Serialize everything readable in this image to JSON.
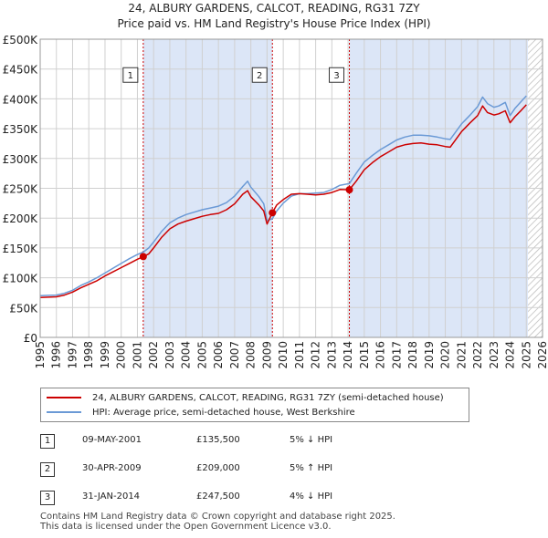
{
  "header": {
    "title": "24, ALBURY GARDENS, CALCOT, READING, RG31 7ZY",
    "subtitle": "Price paid vs. HM Land Registry's House Price Index (HPI)"
  },
  "colors": {
    "price_line": "#cc0000",
    "hpi_line": "#6b9ad6",
    "shade": "#dce6f7",
    "grid": "#d0d0d0"
  },
  "chart_data": {
    "type": "line",
    "xlim": [
      1995,
      2026
    ],
    "ylim": [
      0,
      500000
    ],
    "x_ticks": [
      "1995",
      "1996",
      "1997",
      "1998",
      "1999",
      "2000",
      "2001",
      "2002",
      "2003",
      "2004",
      "2005",
      "2006",
      "2007",
      "2008",
      "2009",
      "2010",
      "2011",
      "2012",
      "2013",
      "2014",
      "2015",
      "2016",
      "2017",
      "2018",
      "2019",
      "2020",
      "2021",
      "2022",
      "2023",
      "2024",
      "2025",
      "2026"
    ],
    "y_ticks": [
      {
        "value": 0,
        "label": "£0"
      },
      {
        "value": 50000,
        "label": "£50K"
      },
      {
        "value": 100000,
        "label": "£100K"
      },
      {
        "value": 150000,
        "label": "£150K"
      },
      {
        "value": 200000,
        "label": "£200K"
      },
      {
        "value": 250000,
        "label": "£250K"
      },
      {
        "value": 300000,
        "label": "£300K"
      },
      {
        "value": 350000,
        "label": "£350K"
      },
      {
        "value": 400000,
        "label": "£400K"
      },
      {
        "value": 450000,
        "label": "£450K"
      },
      {
        "value": 500000,
        "label": "£500K"
      }
    ],
    "shaded_ranges": [
      [
        2001.36,
        2009.33
      ],
      [
        2014.08,
        2025.1
      ]
    ],
    "hatch_from": 2025.1,
    "series": [
      {
        "name": "24, ALBURY GARDENS, CALCOT, READING, RG31 7ZY (semi-detached house)",
        "color": "#cc0000",
        "x": [
          1995.0,
          1995.5,
          1996.0,
          1996.5,
          1997.0,
          1997.5,
          1998.0,
          1998.5,
          1999.0,
          1999.5,
          2000.0,
          2000.5,
          2001.0,
          2001.36,
          2001.7,
          2002.0,
          2002.5,
          2003.0,
          2003.5,
          2004.0,
          2004.5,
          2005.0,
          2005.5,
          2006.0,
          2006.5,
          2007.0,
          2007.5,
          2007.8,
          2008.0,
          2008.5,
          2008.8,
          2009.0,
          2009.33,
          2009.6,
          2010.0,
          2010.5,
          2011.0,
          2011.5,
          2012.0,
          2012.5,
          2013.0,
          2013.5,
          2014.08,
          2014.5,
          2015.0,
          2015.5,
          2016.0,
          2016.5,
          2017.0,
          2017.5,
          2018.0,
          2018.5,
          2019.0,
          2019.5,
          2020.0,
          2020.3,
          2020.6,
          2021.0,
          2021.5,
          2022.0,
          2022.3,
          2022.6,
          2023.0,
          2023.3,
          2023.7,
          2024.0,
          2024.3,
          2024.7,
          2025.0
        ],
        "values": [
          67000,
          67500,
          68000,
          71000,
          76000,
          83000,
          89000,
          95000,
          103000,
          110000,
          117000,
          124000,
          131000,
          135500,
          140000,
          150000,
          168000,
          182000,
          190000,
          195000,
          199000,
          203000,
          206000,
          208000,
          214000,
          224000,
          240000,
          246000,
          236000,
          222000,
          212000,
          190000,
          209000,
          222000,
          231000,
          240000,
          241000,
          240000,
          239000,
          240000,
          243000,
          248000,
          247500,
          262000,
          281000,
          293000,
          303000,
          311000,
          319000,
          323000,
          325000,
          326000,
          324000,
          323000,
          320000,
          319000,
          330000,
          345000,
          359000,
          372000,
          388000,
          377000,
          373000,
          375000,
          380000,
          360000,
          370000,
          381000,
          390000
        ]
      },
      {
        "name": "HPI: Average price, semi-detached house, West Berkshire",
        "color": "#6b9ad6",
        "x": [
          1995.0,
          1995.5,
          1996.0,
          1996.5,
          1997.0,
          1997.5,
          1998.0,
          1998.5,
          1999.0,
          1999.5,
          2000.0,
          2000.5,
          2001.0,
          2001.36,
          2001.7,
          2002.0,
          2002.5,
          2003.0,
          2003.5,
          2004.0,
          2004.5,
          2005.0,
          2005.5,
          2006.0,
          2006.5,
          2007.0,
          2007.5,
          2007.8,
          2008.0,
          2008.5,
          2008.8,
          2009.0,
          2009.33,
          2009.6,
          2010.0,
          2010.5,
          2011.0,
          2011.5,
          2012.0,
          2012.5,
          2013.0,
          2013.5,
          2014.08,
          2014.5,
          2015.0,
          2015.5,
          2016.0,
          2016.5,
          2017.0,
          2017.5,
          2018.0,
          2018.5,
          2019.0,
          2019.5,
          2020.0,
          2020.3,
          2020.6,
          2021.0,
          2021.5,
          2022.0,
          2022.3,
          2022.6,
          2023.0,
          2023.3,
          2023.7,
          2024.0,
          2024.3,
          2024.7,
          2025.0
        ],
        "values": [
          70000,
          70500,
          71000,
          74000,
          79000,
          87000,
          93000,
          100000,
          108000,
          116000,
          124000,
          132000,
          139000,
          143000,
          150000,
          160000,
          178000,
          192000,
          200000,
          206000,
          210000,
          214000,
          217000,
          220000,
          226000,
          237000,
          253000,
          262000,
          252000,
          236000,
          224000,
          196000,
          199000,
          212000,
          225000,
          237000,
          241000,
          241000,
          242000,
          243000,
          248000,
          255000,
          258000,
          275000,
          294000,
          305000,
          315000,
          323000,
          331000,
          336000,
          339000,
          339000,
          338000,
          336000,
          333000,
          332000,
          343000,
          358000,
          372000,
          387000,
          403000,
          392000,
          386000,
          388000,
          394000,
          372000,
          384000,
          396000,
          405000
        ]
      }
    ],
    "sales": [
      {
        "num": "1",
        "x": 2001.36,
        "value": 135500
      },
      {
        "num": "2",
        "x": 2009.33,
        "value": 209000
      },
      {
        "num": "3",
        "x": 2014.08,
        "value": 247500
      }
    ],
    "marker_label_value": 440000
  },
  "legend": {
    "price_label": "24, ALBURY GARDENS, CALCOT, READING, RG31 7ZY (semi-detached house)",
    "hpi_label": "HPI: Average price, semi-detached house, West Berkshire"
  },
  "sales_table": [
    {
      "num": "1",
      "date": "09-MAY-2001",
      "price": "£135,500",
      "hpi": "5% ↓ HPI"
    },
    {
      "num": "2",
      "date": "30-APR-2009",
      "price": "£209,000",
      "hpi": "5% ↑ HPI"
    },
    {
      "num": "3",
      "date": "31-JAN-2014",
      "price": "£247,500",
      "hpi": "4% ↓ HPI"
    }
  ],
  "footer": {
    "line1": "Contains HM Land Registry data © Crown copyright and database right 2025.",
    "line2": "This data is licensed under the Open Government Licence v3.0."
  }
}
